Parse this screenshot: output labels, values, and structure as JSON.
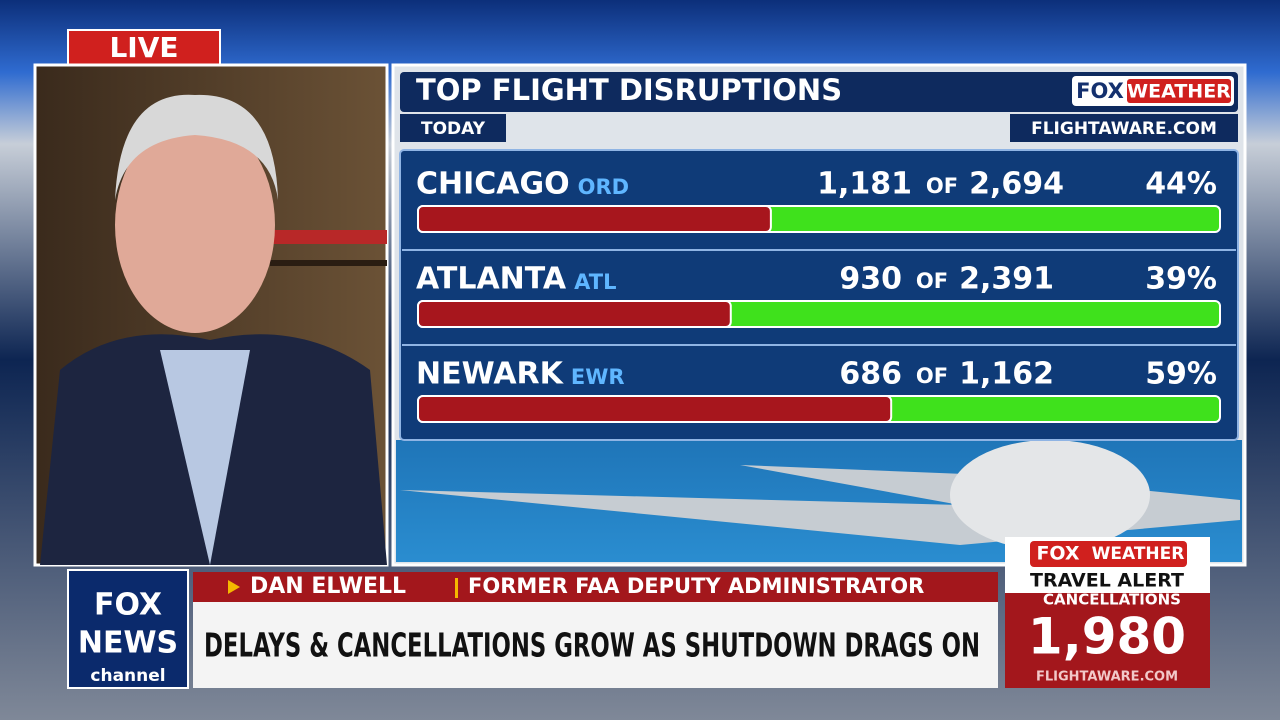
{
  "live": "LIVE",
  "graphic": {
    "title": "TOP FLIGHT DISRUPTIONS",
    "brand": {
      "fox": "FOX",
      "weather": "WEATHER"
    },
    "period": "TODAY",
    "source": "FLIGHTAWARE.COM",
    "rows": [
      {
        "city": "CHICAGO",
        "code": "ORD",
        "disrupted": "1,181",
        "of": "OF",
        "total": "2,694",
        "percent": 44,
        "percent_label": "44%"
      },
      {
        "city": "ATLANTA",
        "code": "ATL",
        "disrupted": "930",
        "of": "OF",
        "total": "2,391",
        "percent": 39,
        "percent_label": "39%"
      },
      {
        "city": "NEWARK",
        "code": "EWR",
        "disrupted": "686",
        "of": "OF",
        "total": "1,162",
        "percent": 59,
        "percent_label": "59%"
      }
    ]
  },
  "lower_third": {
    "name": "DAN ELWELL",
    "role": "FORMER FAA DEPUTY ADMINISTRATOR",
    "headline": "DELAYS & CANCELLATIONS GROW AS SHUTDOWN DRAGS ON",
    "logo": {
      "line1": "FOX",
      "line2": "NEWS",
      "line3": "channel"
    }
  },
  "alert": {
    "brand": {
      "fox": "FOX",
      "weather": "WEATHER"
    },
    "title": "TRAVEL ALERT",
    "label": "CANCELLATIONS",
    "count": "1,980",
    "source": "FLIGHTAWARE.COM"
  }
}
